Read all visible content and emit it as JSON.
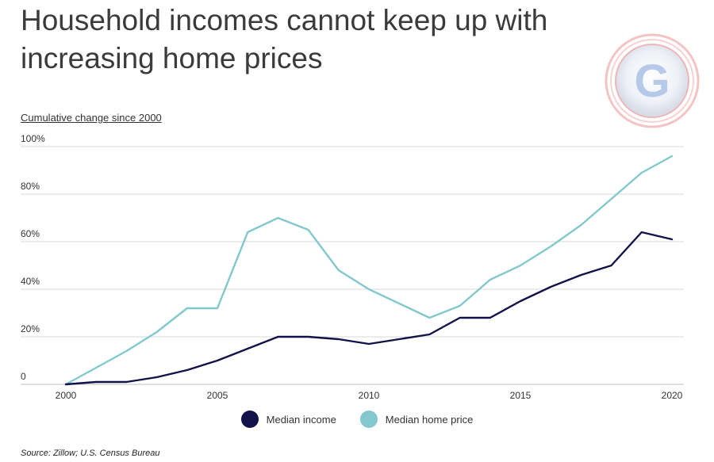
{
  "title": "Household incomes cannot keep up with increasing home prices",
  "subtitle": "Cumulative change since 2000",
  "source": "Source:  Zillow; U.S. Census Bureau",
  "logo": {
    "icon": "g-logo-icon",
    "letter": "G"
  },
  "colors": {
    "income": "#12124a",
    "home_price": "#82c8cd",
    "grid": "#d9d9d9"
  },
  "chart_data": {
    "type": "line",
    "title": "Household incomes cannot keep up with increasing home prices",
    "ylabel": "Cumulative change since 2000",
    "xlabel": "",
    "xlim": [
      2000,
      2020
    ],
    "ylim": [
      0,
      100
    ],
    "x_ticks": [
      "2000",
      "2005",
      "2010",
      "2015",
      "2020"
    ],
    "y_ticks": [
      "0",
      "20%",
      "40%",
      "60%",
      "80%",
      "100%"
    ],
    "grid": true,
    "legend_position": "bottom",
    "x": [
      2000,
      2001,
      2002,
      2003,
      2004,
      2005,
      2006,
      2007,
      2008,
      2009,
      2010,
      2011,
      2012,
      2013,
      2014,
      2015,
      2016,
      2017,
      2018,
      2019,
      2020
    ],
    "series": [
      {
        "name": "Median income",
        "color": "#12124a",
        "values": [
          0,
          1,
          1,
          3,
          6,
          10,
          15,
          20,
          20,
          19,
          17,
          19,
          21,
          28,
          28,
          35,
          41,
          46,
          50,
          64,
          61
        ]
      },
      {
        "name": "Median home price",
        "color": "#82c8cd",
        "values": [
          0,
          7,
          14,
          22,
          32,
          32,
          64,
          70,
          65,
          48,
          40,
          34,
          28,
          33,
          44,
          50,
          58,
          67,
          78,
          89,
          96
        ]
      }
    ]
  }
}
